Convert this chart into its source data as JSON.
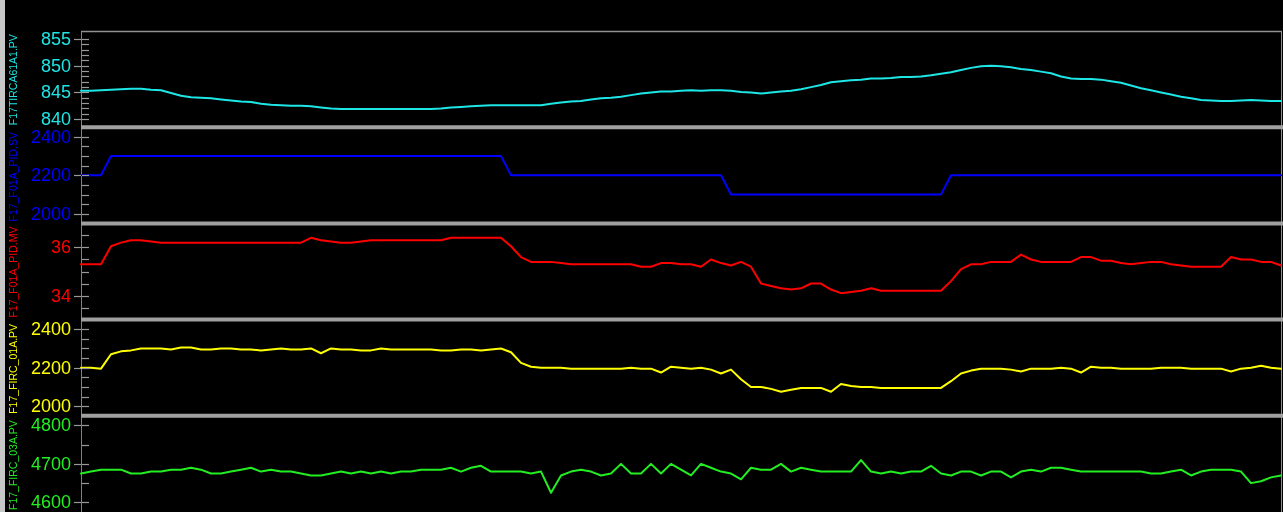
{
  "chart_data": [
    {
      "type": "line",
      "ylabel": "F17TIRCA61A1.PV",
      "tick_labels": "y",
      "ylim": [
        838.5,
        856.5
      ],
      "yticks": [
        840,
        {
          "value": 841,
          "label": null
        },
        {
          "value": 842,
          "label": null
        },
        {
          "value": 843,
          "label": null
        },
        {
          "value": 844,
          "label": null
        },
        845,
        {
          "value": 846,
          "label": null
        },
        {
          "value": 847,
          "label": null
        },
        {
          "value": 848,
          "label": null
        },
        {
          "value": 849,
          "label": null
        },
        850,
        {
          "value": 851,
          "label": null
        },
        {
          "value": 852,
          "label": null
        },
        {
          "value": 853,
          "label": null
        },
        {
          "value": 854,
          "label": null
        },
        855
      ],
      "categories": [
        null,
        null,
        null,
        null,
        null,
        null,
        null,
        null,
        null,
        null,
        null,
        null,
        null,
        null,
        null,
        null,
        null,
        null,
        null,
        null,
        null,
        null,
        null,
        null,
        null,
        null,
        null,
        null,
        null,
        null,
        null,
        null,
        null,
        null,
        null,
        null,
        null,
        null,
        null,
        null,
        null,
        null,
        null,
        null,
        null,
        null,
        null,
        null,
        null,
        null,
        null,
        null,
        null,
        null,
        null,
        null,
        null,
        null,
        null,
        null,
        null,
        null,
        null,
        null,
        null,
        null,
        null,
        null,
        null,
        null,
        null,
        null,
        null,
        null,
        null,
        null,
        null,
        null,
        null,
        null,
        null,
        null,
        null,
        null,
        null,
        null,
        null,
        null,
        null,
        null,
        null,
        null,
        null,
        null,
        null,
        null,
        null,
        null,
        null,
        null,
        null,
        null,
        null,
        null,
        null,
        null,
        null,
        null,
        null,
        null,
        null,
        null,
        null,
        null,
        null,
        null,
        null,
        null,
        null,
        null,
        null
      ],
      "series": [
        {
          "color": "#1ee6e6",
          "values": [
            845.3,
            845.3,
            845.4,
            845.5,
            845.6,
            845.7,
            845.7,
            845.5,
            845.4,
            844.9,
            844.4,
            844.1,
            844.0,
            843.9,
            843.7,
            843.5,
            843.3,
            843.2,
            842.9,
            842.7,
            842.6,
            842.5,
            842.5,
            842.4,
            842.2,
            842.0,
            841.9,
            841.9,
            841.9,
            841.9,
            841.9,
            841.9,
            841.9,
            841.9,
            841.9,
            841.9,
            842.0,
            842.2,
            842.3,
            842.4,
            842.5,
            842.6,
            842.6,
            842.6,
            842.6,
            842.6,
            842.6,
            842.9,
            843.1,
            843.3,
            843.4,
            843.7,
            843.9,
            844.0,
            844.2,
            844.5,
            844.8,
            845.0,
            845.2,
            845.2,
            845.3,
            845.4,
            845.3,
            845.4,
            845.4,
            845.3,
            845.1,
            845.0,
            844.8,
            845.0,
            845.2,
            845.3,
            845.6,
            846.0,
            846.4,
            846.9,
            847.1,
            847.3,
            847.4,
            847.6,
            847.6,
            847.7,
            847.9,
            847.9,
            848.0,
            848.2,
            848.5,
            848.8,
            849.2,
            849.6,
            849.9,
            850.0,
            849.9,
            849.7,
            849.4,
            849.2,
            848.9,
            848.6,
            848.0,
            847.6,
            847.5,
            847.5,
            847.4,
            847.1,
            846.8,
            846.3,
            845.8,
            845.4,
            845.0,
            844.6,
            844.2,
            843.9,
            843.6,
            843.5,
            843.4,
            843.4,
            843.5,
            843.6,
            843.5,
            843.4,
            843.4
          ]
        }
      ]
    },
    {
      "type": "line",
      "ylabel": "F17_F01A_PID.SV",
      "tick_labels": "y",
      "ylim": [
        1950,
        2450
      ],
      "yticks": [
        2000,
        {
          "value": 2050,
          "label": null
        },
        {
          "value": 2100,
          "label": null
        },
        {
          "value": 2150,
          "label": null
        },
        2200,
        {
          "value": 2250,
          "label": null
        },
        {
          "value": 2300,
          "label": null
        },
        {
          "value": 2350,
          "label": null
        },
        2400
      ],
      "categories": [
        null,
        null,
        null,
        null,
        null,
        null,
        null,
        null,
        null,
        null,
        null,
        null,
        null,
        null,
        null,
        null,
        null,
        null,
        null,
        null,
        null,
        null,
        null,
        null,
        null,
        null,
        null,
        null,
        null,
        null,
        null,
        null,
        null,
        null,
        null,
        null,
        null,
        null,
        null,
        null,
        null,
        null,
        null,
        null,
        null,
        null,
        null,
        null,
        null,
        null,
        null,
        null,
        null,
        null,
        null,
        null,
        null,
        null,
        null,
        null,
        null,
        null,
        null,
        null,
        null,
        null,
        null,
        null,
        null,
        null,
        null,
        null,
        null,
        null,
        null,
        null,
        null,
        null,
        null,
        null,
        null,
        null,
        null,
        null,
        null,
        null,
        null,
        null,
        null,
        null,
        null,
        null,
        null,
        null,
        null,
        null,
        null,
        null,
        null,
        null,
        null,
        null,
        null,
        null,
        null,
        null,
        null,
        null,
        null,
        null,
        null,
        null,
        null,
        null,
        null,
        null,
        null,
        null,
        null,
        null,
        null
      ],
      "series": [
        {
          "color": "#0000ff",
          "values": [
            2200,
            2200,
            2200,
            2300,
            2300,
            2300,
            2300,
            2300,
            2300,
            2300,
            2300,
            2300,
            2300,
            2300,
            2300,
            2300,
            2300,
            2300,
            2300,
            2300,
            2300,
            2300,
            2300,
            2300,
            2300,
            2300,
            2300,
            2300,
            2300,
            2300,
            2300,
            2300,
            2300,
            2300,
            2300,
            2300,
            2300,
            2300,
            2300,
            2300,
            2300,
            2300,
            2300,
            2200,
            2200,
            2200,
            2200,
            2200,
            2200,
            2200,
            2200,
            2200,
            2200,
            2200,
            2200,
            2200,
            2200,
            2200,
            2200,
            2200,
            2200,
            2200,
            2200,
            2200,
            2200,
            2100,
            2100,
            2100,
            2100,
            2100,
            2100,
            2100,
            2100,
            2100,
            2100,
            2100,
            2100,
            2100,
            2100,
            2100,
            2100,
            2100,
            2100,
            2100,
            2100,
            2100,
            2100,
            2200,
            2200,
            2200,
            2200,
            2200,
            2200,
            2200,
            2200,
            2200,
            2200,
            2200,
            2200,
            2200,
            2200,
            2200,
            2200,
            2200,
            2200,
            2200,
            2200,
            2200,
            2200,
            2200,
            2200,
            2200,
            2200,
            2200,
            2200,
            2200,
            2200,
            2200,
            2200,
            2200,
            2200
          ]
        }
      ]
    },
    {
      "type": "line",
      "ylabel": "F17_F01A_PID.MV",
      "tick_labels": "y",
      "ylim": [
        33,
        37
      ],
      "yticks": [
        {
          "value": 33.5,
          "label": null
        },
        34,
        {
          "value": 34.5,
          "label": null
        },
        {
          "value": 35,
          "label": null
        },
        {
          "value": 35.5,
          "label": null
        },
        36,
        {
          "value": 36.5,
          "label": null
        }
      ],
      "categories": [
        null,
        null,
        null,
        null,
        null,
        null,
        null,
        null,
        null,
        null,
        null,
        null,
        null,
        null,
        null,
        null,
        null,
        null,
        null,
        null,
        null,
        null,
        null,
        null,
        null,
        null,
        null,
        null,
        null,
        null,
        null,
        null,
        null,
        null,
        null,
        null,
        null,
        null,
        null,
        null,
        null,
        null,
        null,
        null,
        null,
        null,
        null,
        null,
        null,
        null,
        null,
        null,
        null,
        null,
        null,
        null,
        null,
        null,
        null,
        null,
        null,
        null,
        null,
        null,
        null,
        null,
        null,
        null,
        null,
        null,
        null,
        null,
        null,
        null,
        null,
        null,
        null,
        null,
        null,
        null,
        null,
        null,
        null,
        null,
        null,
        null,
        null,
        null,
        null,
        null,
        null,
        null,
        null,
        null,
        null,
        null,
        null,
        null,
        null,
        null,
        null,
        null,
        null,
        null,
        null,
        null,
        null,
        null,
        null,
        null,
        null,
        null,
        null,
        null,
        null,
        null,
        null,
        null,
        null,
        null,
        null
      ],
      "series": [
        {
          "color": "#ff0000",
          "values": [
            35.3,
            35.3,
            35.3,
            36.05,
            36.2,
            36.3,
            36.3,
            36.25,
            36.2,
            36.2,
            36.2,
            36.2,
            36.2,
            36.2,
            36.2,
            36.2,
            36.2,
            36.2,
            36.2,
            36.2,
            36.2,
            36.2,
            36.2,
            36.4,
            36.3,
            36.25,
            36.2,
            36.2,
            36.25,
            36.3,
            36.3,
            36.3,
            36.3,
            36.3,
            36.3,
            36.3,
            36.3,
            36.4,
            36.4,
            36.4,
            36.4,
            36.4,
            36.4,
            36.05,
            35.6,
            35.4,
            35.4,
            35.4,
            35.35,
            35.3,
            35.3,
            35.3,
            35.3,
            35.3,
            35.3,
            35.3,
            35.2,
            35.2,
            35.35,
            35.35,
            35.3,
            35.3,
            35.2,
            35.5,
            35.35,
            35.25,
            35.4,
            35.2,
            34.5,
            34.4,
            34.3,
            34.25,
            34.3,
            34.5,
            34.5,
            34.25,
            34.1,
            34.15,
            34.2,
            34.3,
            34.2,
            34.2,
            34.2,
            34.2,
            34.2,
            34.2,
            34.2,
            34.6,
            35.1,
            35.3,
            35.3,
            35.4,
            35.4,
            35.4,
            35.7,
            35.5,
            35.4,
            35.4,
            35.4,
            35.4,
            35.6,
            35.6,
            35.45,
            35.45,
            35.35,
            35.3,
            35.35,
            35.4,
            35.4,
            35.3,
            35.25,
            35.2,
            35.2,
            35.2,
            35.2,
            35.6,
            35.5,
            35.5,
            35.4,
            35.4,
            35.25
          ]
        }
      ]
    },
    {
      "type": "line",
      "ylabel": "F17_FIRC_01A.PV",
      "tick_labels": "y",
      "ylim": [
        1950,
        2450
      ],
      "yticks": [
        2000,
        {
          "value": 2050,
          "label": null
        },
        {
          "value": 2100,
          "label": null
        },
        {
          "value": 2150,
          "label": null
        },
        2200,
        {
          "value": 2250,
          "label": null
        },
        {
          "value": 2300,
          "label": null
        },
        {
          "value": 2350,
          "label": null
        },
        2400
      ],
      "categories": [
        null,
        null,
        null,
        null,
        null,
        null,
        null,
        null,
        null,
        null,
        null,
        null,
        null,
        null,
        null,
        null,
        null,
        null,
        null,
        null,
        null,
        null,
        null,
        null,
        null,
        null,
        null,
        null,
        null,
        null,
        null,
        null,
        null,
        null,
        null,
        null,
        null,
        null,
        null,
        null,
        null,
        null,
        null,
        null,
        null,
        null,
        null,
        null,
        null,
        null,
        null,
        null,
        null,
        null,
        null,
        null,
        null,
        null,
        null,
        null,
        null,
        null,
        null,
        null,
        null,
        null,
        null,
        null,
        null,
        null,
        null,
        null,
        null,
        null,
        null,
        null,
        null,
        null,
        null,
        null,
        null,
        null,
        null,
        null,
        null,
        null,
        null,
        null,
        null,
        null,
        null,
        null,
        null,
        null,
        null,
        null,
        null,
        null,
        null,
        null,
        null,
        null,
        null,
        null,
        null,
        null,
        null,
        null,
        null,
        null,
        null,
        null,
        null,
        null,
        null,
        null,
        null,
        null,
        null,
        null,
        null
      ],
      "series": [
        {
          "color": "#ffff00",
          "values": [
            2200,
            2200,
            2195,
            2270,
            2285,
            2290,
            2300,
            2300,
            2300,
            2295,
            2305,
            2305,
            2295,
            2295,
            2300,
            2300,
            2295,
            2295,
            2290,
            2295,
            2300,
            2295,
            2295,
            2300,
            2275,
            2300,
            2295,
            2295,
            2290,
            2290,
            2300,
            2295,
            2295,
            2295,
            2295,
            2295,
            2290,
            2290,
            2295,
            2295,
            2290,
            2295,
            2300,
            2280,
            2225,
            2205,
            2200,
            2200,
            2200,
            2195,
            2195,
            2195,
            2195,
            2195,
            2195,
            2200,
            2195,
            2195,
            2175,
            2205,
            2200,
            2195,
            2200,
            2190,
            2170,
            2190,
            2140,
            2100,
            2100,
            2090,
            2075,
            2085,
            2095,
            2095,
            2095,
            2075,
            2115,
            2105,
            2100,
            2100,
            2095,
            2095,
            2095,
            2095,
            2095,
            2095,
            2095,
            2130,
            2170,
            2185,
            2195,
            2195,
            2195,
            2190,
            2180,
            2195,
            2195,
            2195,
            2200,
            2195,
            2175,
            2205,
            2200,
            2200,
            2195,
            2195,
            2195,
            2195,
            2200,
            2200,
            2200,
            2195,
            2195,
            2195,
            2195,
            2180,
            2195,
            2200,
            2210,
            2200,
            2195
          ]
        }
      ]
    },
    {
      "type": "line",
      "ylabel": "F17_FIRC_03A.PV",
      "tick_labels": "y",
      "ylim": [
        4575,
        4825
      ],
      "yticks": [
        4600,
        {
          "value": 4650,
          "label": null
        },
        4700,
        {
          "value": 4750,
          "label": null
        },
        4800
      ],
      "categories": [
        null,
        null,
        null,
        null,
        null,
        null,
        null,
        null,
        null,
        null,
        null,
        null,
        null,
        null,
        null,
        null,
        null,
        null,
        null,
        null,
        null,
        null,
        null,
        null,
        null,
        null,
        null,
        null,
        null,
        null,
        null,
        null,
        null,
        null,
        null,
        null,
        null,
        null,
        null,
        null,
        null,
        null,
        null,
        null,
        null,
        null,
        null,
        null,
        null,
        null,
        null,
        null,
        null,
        null,
        null,
        null,
        null,
        null,
        null,
        null,
        null,
        null,
        null,
        null,
        null,
        null,
        null,
        null,
        null,
        null,
        null,
        null,
        null,
        null,
        null,
        null,
        null,
        null,
        null,
        null,
        null,
        null,
        null,
        null,
        null,
        null,
        null,
        null,
        null,
        null,
        null,
        null,
        null,
        null,
        null,
        null,
        null,
        null,
        null,
        null,
        null,
        null,
        null,
        null,
        null,
        null,
        null,
        null,
        null,
        null,
        null,
        null,
        null,
        null,
        null,
        null,
        null,
        null,
        null,
        null,
        null
      ],
      "series": [
        {
          "color": "#22ee22",
          "values": [
            4675,
            4680,
            4685,
            4685,
            4685,
            4675,
            4675,
            4680,
            4680,
            4685,
            4685,
            4690,
            4685,
            4675,
            4675,
            4680,
            4685,
            4690,
            4680,
            4685,
            4680,
            4680,
            4675,
            4670,
            4670,
            4675,
            4680,
            4675,
            4680,
            4675,
            4680,
            4675,
            4680,
            4680,
            4685,
            4685,
            4685,
            4690,
            4680,
            4690,
            4695,
            4680,
            4680,
            4680,
            4680,
            4675,
            4680,
            4625,
            4670,
            4680,
            4685,
            4680,
            4670,
            4675,
            4700,
            4675,
            4675,
            4700,
            4675,
            4700,
            4685,
            4670,
            4700,
            4690,
            4680,
            4675,
            4660,
            4690,
            4685,
            4685,
            4700,
            4680,
            4690,
            4685,
            4680,
            4680,
            4680,
            4680,
            4710,
            4680,
            4675,
            4680,
            4675,
            4680,
            4680,
            4695,
            4675,
            4670,
            4680,
            4680,
            4670,
            4680,
            4680,
            4665,
            4680,
            4685,
            4680,
            4690,
            4690,
            4685,
            4680,
            4680,
            4680,
            4680,
            4680,
            4680,
            4680,
            4675,
            4675,
            4680,
            4685,
            4670,
            4680,
            4685,
            4685,
            4685,
            4680,
            4650,
            4655,
            4665,
            4670
          ]
        }
      ]
    }
  ]
}
